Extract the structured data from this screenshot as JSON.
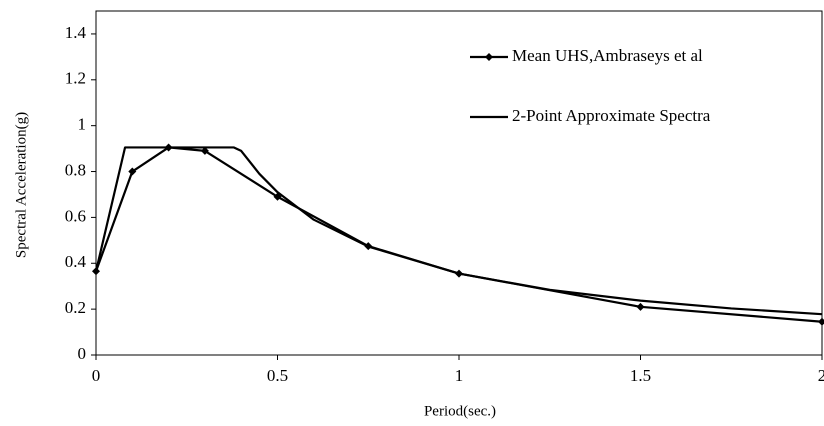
{
  "chart_data": {
    "type": "line",
    "xlabel": "Period(sec.)",
    "ylabel": "Spectral Acceleration(g)",
    "xlim": [
      0,
      2
    ],
    "xticks": [
      0,
      0.5,
      1,
      1.5,
      2
    ],
    "ylim": [
      0,
      1.5
    ],
    "yticks": [
      0,
      0.2,
      0.4,
      0.6,
      0.8,
      1,
      1.2,
      1.4
    ],
    "grid": false,
    "legend": "upper right",
    "series": [
      {
        "name": "Mean UHS,Ambraseys et al",
        "color": "#000000",
        "marker": "diamond",
        "x": [
          0,
          0.1,
          0.2,
          0.3,
          0.5,
          0.75,
          1,
          1.5,
          2
        ],
        "values": [
          0.365,
          0.8,
          0.905,
          0.89,
          0.69,
          0.475,
          0.355,
          0.21,
          0.145
        ]
      },
      {
        "name": "2-Point Approximate Spectra",
        "color": "#000000",
        "x": [
          0,
          0.08,
          0.38,
          0.4,
          0.45,
          0.5,
          0.6,
          0.75,
          1,
          1.25,
          1.5,
          1.75,
          2
        ],
        "values": [
          0.365,
          0.905,
          0.905,
          0.89,
          0.79,
          0.71,
          0.59,
          0.473,
          0.355,
          0.284,
          0.237,
          0.203,
          0.178
        ]
      }
    ]
  }
}
